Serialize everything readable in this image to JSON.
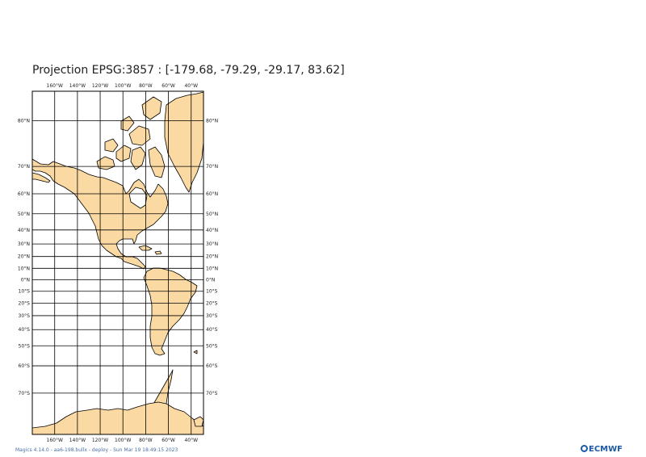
{
  "title": "Projection EPSG:3857 : [-179.68, -79.29, -29.17, 83.62]",
  "map": {
    "projection": "EPSG:3857",
    "extent": {
      "lon_min": -179.68,
      "lat_min": -79.29,
      "lon_max": -29.17,
      "lat_max": 83.62
    },
    "land_color": "#fbd9a3",
    "coast_color": "#000000",
    "grid_color": "#000000",
    "lon_ticks": [
      "160°W",
      "140°W",
      "120°W",
      "100°W",
      "80°W",
      "60°W",
      "40°W"
    ],
    "lat_ticks": [
      "80°N",
      "70°N",
      "60°N",
      "50°N",
      "40°N",
      "30°N",
      "20°N",
      "10°N",
      "0°N",
      "10°S",
      "20°S",
      "30°S",
      "40°S",
      "50°S",
      "60°S",
      "70°S"
    ]
  },
  "footer": "Magics 4.14.0 - aa6-198.bullx - deploy - Sun Mar 19 18:49:15 2023",
  "logo": {
    "text": "ECMWF",
    "icon": "ecmwf-logo-icon"
  }
}
